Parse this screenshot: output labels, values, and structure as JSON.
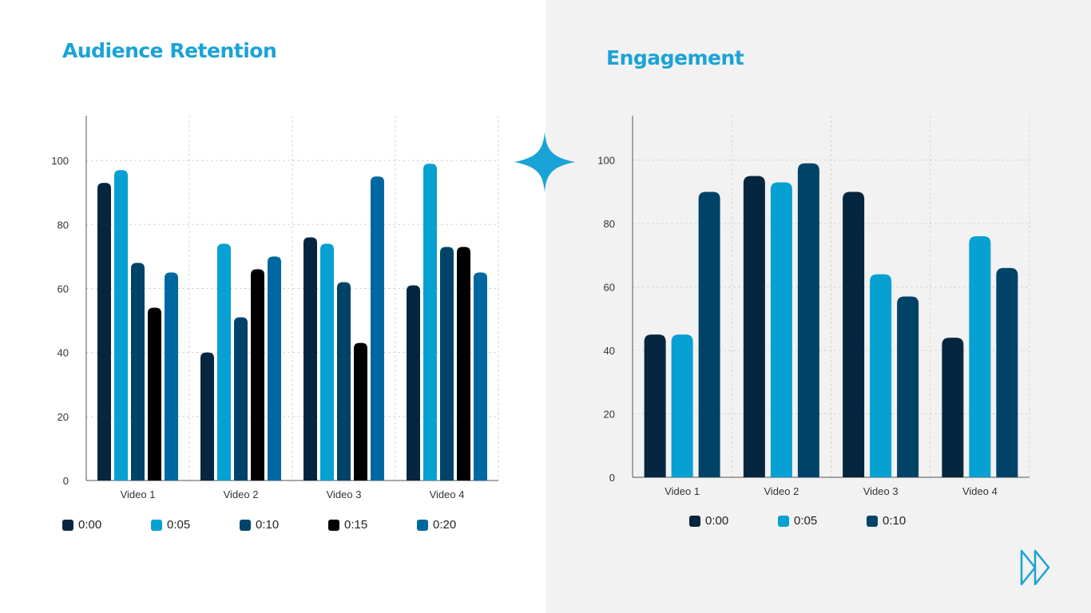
{
  "slide": {
    "colors": {
      "accent": "#1aa3d6",
      "left_background": "#ffffff",
      "right_background": "#f2f2f2",
      "series": [
        "#06263f",
        "#06a0d2",
        "#004368",
        "#000000",
        "#0068a0"
      ]
    },
    "decorations": [
      "sparkle-star-icon",
      "fast-forward-icon"
    ]
  },
  "chart_data": [
    {
      "type": "bar",
      "title": "Audience Retention",
      "categories": [
        "Video 1",
        "Video 2",
        "Video 3",
        "Video 4"
      ],
      "series": [
        {
          "name": "0:00",
          "values": [
            93,
            40,
            76,
            61
          ]
        },
        {
          "name": "0:05",
          "values": [
            97,
            74,
            74,
            99
          ]
        },
        {
          "name": "0:10",
          "values": [
            68,
            51,
            62,
            73
          ]
        },
        {
          "name": "0:15",
          "values": [
            54,
            66,
            43,
            73
          ]
        },
        {
          "name": "0:20",
          "values": [
            65,
            70,
            95,
            65
          ]
        }
      ],
      "yticks": [
        0,
        20,
        40,
        60,
        80,
        100
      ],
      "ylim": [
        0,
        114
      ],
      "xlabel": "",
      "ylabel": "",
      "grid": true,
      "legend": "bottom"
    },
    {
      "type": "bar",
      "title": "Engagement",
      "categories": [
        "Video 1",
        "Video 2",
        "Video 3",
        "Video 4"
      ],
      "series": [
        {
          "name": "0:00",
          "values": [
            45,
            95,
            90,
            44
          ]
        },
        {
          "name": "0:05",
          "values": [
            45,
            93,
            64,
            76
          ]
        },
        {
          "name": "0:10",
          "values": [
            90,
            99,
            57,
            66
          ]
        }
      ],
      "yticks": [
        0,
        20,
        40,
        60,
        80,
        100
      ],
      "ylim": [
        0,
        114
      ],
      "xlabel": "",
      "ylabel": "",
      "grid": true,
      "legend": "bottom"
    }
  ]
}
